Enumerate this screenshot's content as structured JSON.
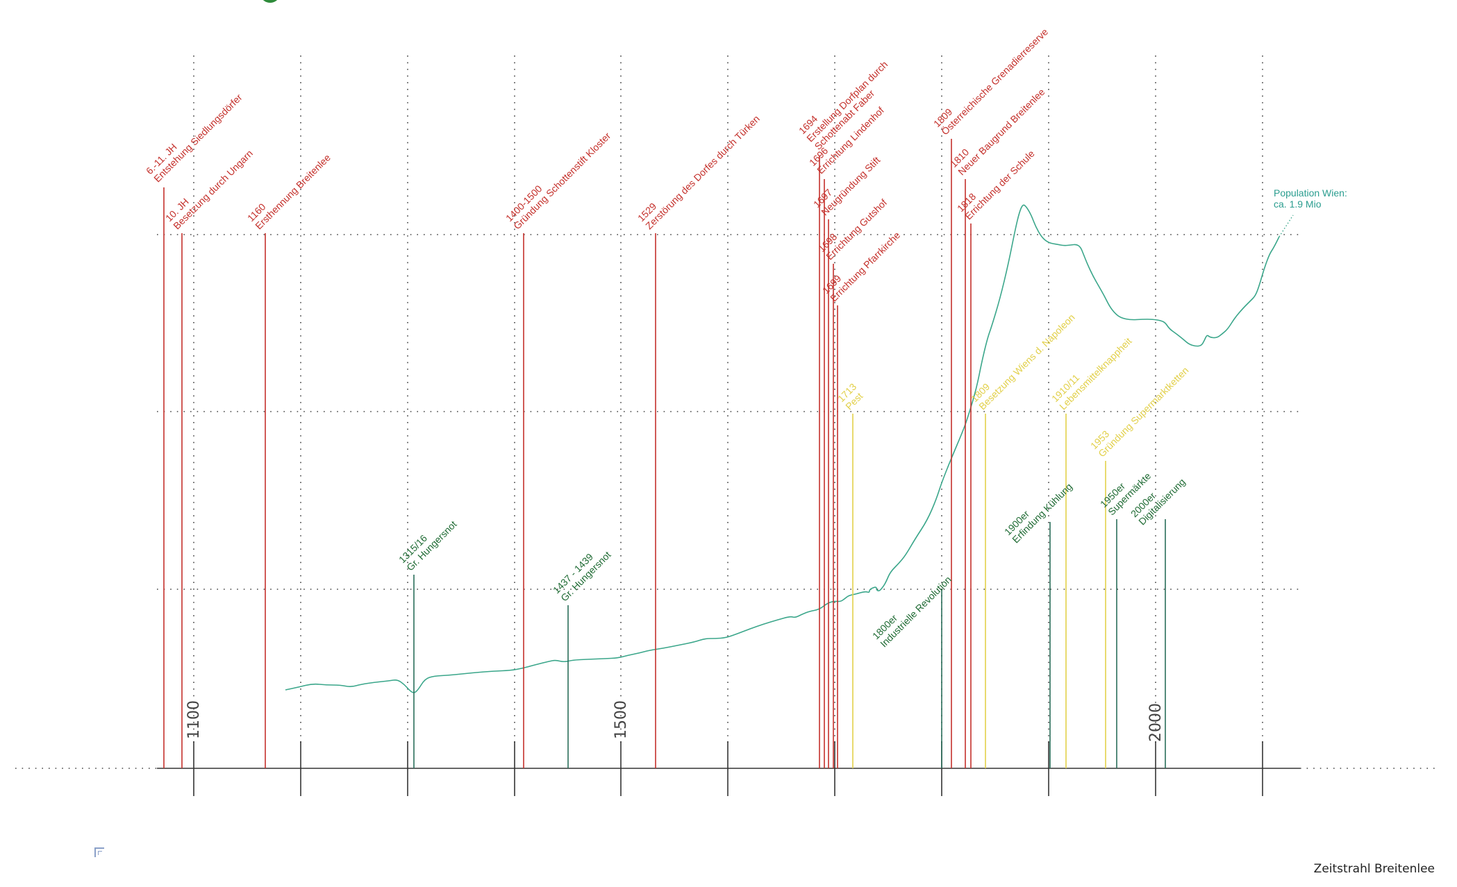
{
  "title": "Zeitstrahl Breitenlee",
  "colors": {
    "red": "#c4302b",
    "yellow": "#e2d04a",
    "green": "#1f6b34",
    "teal": "#3aa68a",
    "population_label": "#2a9d8f",
    "axis": "#333333",
    "grid": "#444444"
  },
  "axis": {
    "major_labels": [
      "1100",
      "1500",
      "2000"
    ]
  },
  "population_label": {
    "line1": "Population Wien:",
    "line2": "ca. 1.9 Mio"
  },
  "events": {
    "red": [
      {
        "year": "6.-11. JH",
        "text": "Entstehung Siedlungsdörfer"
      },
      {
        "year": "10. JH",
        "text": "Besetzung durch Ungarn"
      },
      {
        "year": "1160",
        "text": "Ersthennung Breitenlee"
      },
      {
        "year": "1400-1500",
        "text": "Gründung Schottenstift Kloster"
      },
      {
        "year": "1529",
        "text": "Zerstörung des Dorfes durch Türken"
      },
      {
        "year": "1694",
        "text": "Erstellung Dorfplan durch",
        "text2": "Schottenabt Faber"
      },
      {
        "year": "1696",
        "text": "Errichtung Lindenhof"
      },
      {
        "year": "1697",
        "text": "Neugründung Stift"
      },
      {
        "year": "1698",
        "text": "Errichtung Gutshof"
      },
      {
        "year": "1699",
        "text": "Errichtung Pfarrkirche"
      },
      {
        "year": "1809",
        "text": "Österreichische Grenadierreserve"
      },
      {
        "year": "1810",
        "text": "Neuer Baugrund Breitenlee"
      },
      {
        "year": "1818",
        "text": "Errichtung der Schule"
      }
    ],
    "yellow": [
      {
        "year": "1713",
        "text": "Pest"
      },
      {
        "year": "1809",
        "text": "Besetzung Wiens d. Napoleon"
      },
      {
        "year": "1910/11",
        "text": "Lebensmittelknappheit"
      },
      {
        "year": "1953",
        "text": "Gründung Supermarktketten"
      }
    ],
    "green": [
      {
        "year": "1315/16",
        "text": "Gr. Hungersnot"
      },
      {
        "year": "1437 - 1439",
        "text": "Gr. Hungersnot"
      },
      {
        "year": "1800er",
        "text": "Industrielle Revolution"
      },
      {
        "year": "1900er",
        "text": "Erfindung Kühlung"
      },
      {
        "year": "1950er",
        "text": "Supermärkte"
      },
      {
        "year": "2000er",
        "text": "Digitalisierung"
      }
    ]
  }
}
